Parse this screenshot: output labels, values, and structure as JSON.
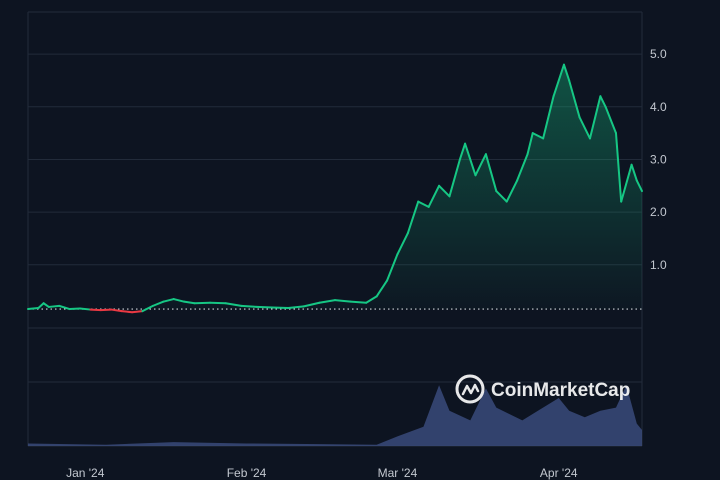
{
  "chart_data": {
    "type": "line",
    "title": "",
    "xlabel": "",
    "ylabel": "",
    "x_tick_labels": [
      "Jan '24",
      "Feb '24",
      "Mar '24",
      "Apr '24"
    ],
    "y_tick_labels": [
      "1.0",
      "2.0",
      "3.0",
      "4.0",
      "5.0"
    ],
    "ylim": [
      -0.2,
      5.8
    ],
    "x_range": [
      "2023-12-21",
      "2024-04-17"
    ],
    "baseline": 0.16,
    "grid": true,
    "colors": {
      "up": "#16c784",
      "down": "#ea3943",
      "volume": "#3a4a7a",
      "background": "#0d1421",
      "grid": "#222b3a"
    },
    "series": [
      {
        "values": [
          [
            "2023-12-21",
            0.16
          ],
          [
            "2023-12-23",
            0.18
          ],
          [
            "2023-12-24",
            0.27
          ],
          [
            "2023-12-25",
            0.2
          ],
          [
            "2023-12-27",
            0.22
          ],
          [
            "2023-12-29",
            0.16
          ],
          [
            "2023-12-31",
            0.17
          ],
          [
            "2024-01-02",
            0.15
          ],
          [
            "2024-01-04",
            0.14
          ],
          [
            "2024-01-06",
            0.15
          ],
          [
            "2024-01-08",
            0.12
          ],
          [
            "2024-01-10",
            0.1
          ],
          [
            "2024-01-12",
            0.12
          ],
          [
            "2024-01-14",
            0.22
          ],
          [
            "2024-01-16",
            0.3
          ],
          [
            "2024-01-18",
            0.35
          ],
          [
            "2024-01-20",
            0.3
          ],
          [
            "2024-01-22",
            0.27
          ],
          [
            "2024-01-25",
            0.28
          ],
          [
            "2024-01-28",
            0.27
          ],
          [
            "2024-01-31",
            0.22
          ],
          [
            "2024-02-03",
            0.2
          ],
          [
            "2024-02-06",
            0.19
          ],
          [
            "2024-02-09",
            0.18
          ],
          [
            "2024-02-12",
            0.21
          ],
          [
            "2024-02-15",
            0.28
          ],
          [
            "2024-02-18",
            0.33
          ],
          [
            "2024-02-21",
            0.3
          ],
          [
            "2024-02-24",
            0.28
          ],
          [
            "2024-02-26",
            0.4
          ],
          [
            "2024-02-28",
            0.7
          ],
          [
            "2024-03-01",
            1.2
          ],
          [
            "2024-03-03",
            1.6
          ],
          [
            "2024-03-05",
            2.2
          ],
          [
            "2024-03-07",
            2.1
          ],
          [
            "2024-03-09",
            2.5
          ],
          [
            "2024-03-11",
            2.3
          ],
          [
            "2024-03-13",
            3.0
          ],
          [
            "2024-03-14",
            3.3
          ],
          [
            "2024-03-16",
            2.7
          ],
          [
            "2024-03-18",
            3.1
          ],
          [
            "2024-03-20",
            2.4
          ],
          [
            "2024-03-22",
            2.2
          ],
          [
            "2024-03-24",
            2.6
          ],
          [
            "2024-03-26",
            3.1
          ],
          [
            "2024-03-27",
            3.5
          ],
          [
            "2024-03-29",
            3.4
          ],
          [
            "2024-03-31",
            4.2
          ],
          [
            "2024-04-02",
            4.8
          ],
          [
            "2024-04-03",
            4.5
          ],
          [
            "2024-04-05",
            3.8
          ],
          [
            "2024-04-07",
            3.4
          ],
          [
            "2024-04-09",
            4.2
          ],
          [
            "2024-04-10",
            4.0
          ],
          [
            "2024-04-12",
            3.5
          ],
          [
            "2024-04-13",
            2.2
          ],
          [
            "2024-04-15",
            2.9
          ],
          [
            "2024-04-16",
            2.6
          ],
          [
            "2024-04-17",
            2.4
          ]
        ]
      }
    ],
    "volume": [
      [
        "2023-12-21",
        0.04
      ],
      [
        "2024-01-05",
        0.02
      ],
      [
        "2024-01-18",
        0.06
      ],
      [
        "2024-02-01",
        0.04
      ],
      [
        "2024-02-15",
        0.03
      ],
      [
        "2024-02-26",
        0.02
      ],
      [
        "2024-03-01",
        0.15
      ],
      [
        "2024-03-06",
        0.3
      ],
      [
        "2024-03-09",
        0.95
      ],
      [
        "2024-03-11",
        0.55
      ],
      [
        "2024-03-15",
        0.4
      ],
      [
        "2024-03-18",
        0.9
      ],
      [
        "2024-03-20",
        0.6
      ],
      [
        "2024-03-25",
        0.4
      ],
      [
        "2024-03-28",
        0.55
      ],
      [
        "2024-04-01",
        0.75
      ],
      [
        "2024-04-03",
        0.55
      ],
      [
        "2024-04-06",
        0.45
      ],
      [
        "2024-04-09",
        0.55
      ],
      [
        "2024-04-12",
        0.6
      ],
      [
        "2024-04-14",
        0.95
      ],
      [
        "2024-04-16",
        0.35
      ],
      [
        "2024-04-17",
        0.25
      ]
    ]
  },
  "watermark": {
    "text": "CoinMarketCap",
    "logo_icon": "coinmarketcap-logo-icon"
  }
}
